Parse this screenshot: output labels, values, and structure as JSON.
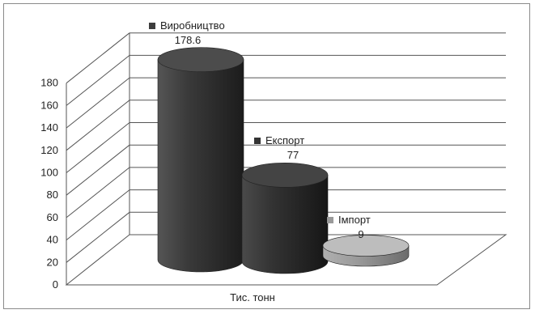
{
  "chart_data": {
    "type": "bar",
    "style": "3d-cylinder",
    "categories": [
      "Виробництво",
      "Експорт",
      "Імпорт"
    ],
    "values": [
      178.6,
      77,
      9
    ],
    "value_labels": [
      "178.6",
      "77",
      "9"
    ],
    "xlabel": "Тис. тонн",
    "ylim": [
      0,
      180
    ],
    "ytick_labels": [
      "0",
      "20",
      "40",
      "60",
      "80",
      "100",
      "120",
      "140",
      "160",
      "180"
    ],
    "grid": true,
    "colors": [
      "#3d3d3d",
      "#333333",
      "#9a9a9a"
    ]
  }
}
